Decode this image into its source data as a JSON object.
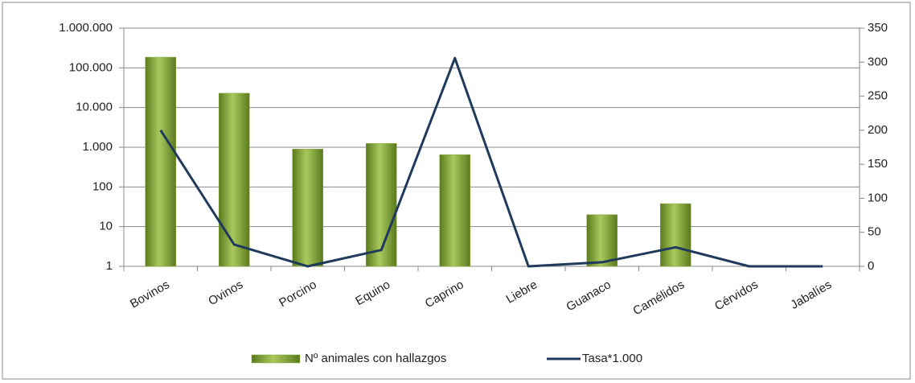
{
  "chart_data": {
    "type": "bar-line",
    "yscale": "log",
    "legend": "bottom",
    "grid": true,
    "categories": [
      "Bovinos",
      "Ovinos",
      "Porcino",
      "Equino",
      "Caprino",
      "Liebre",
      "Guanaco",
      "Camélidos",
      "Cérvidos",
      "Jabalíes"
    ],
    "series": [
      {
        "name": "Nº animales con hallazgos",
        "type": "bar",
        "color": "#8aaa3c",
        "values": [
          186000,
          23000,
          900,
          1250,
          650,
          null,
          20,
          38,
          null,
          null
        ]
      },
      {
        "name": "Tasa*1.000",
        "type": "line",
        "axis": "y2",
        "color": "#1f3a5a",
        "values": [
          200,
          32,
          0,
          24,
          306,
          0,
          6,
          28,
          0,
          0
        ]
      }
    ],
    "ylim": [
      1,
      1000000
    ],
    "yticks": [
      1,
      10,
      100,
      {
        "value": 1000,
        "label": "1.000"
      },
      {
        "value": 10000,
        "label": "10.000"
      },
      {
        "value": 100000,
        "label": "100.000"
      },
      {
        "value": 1000000,
        "label": "1.000.000"
      }
    ],
    "y2lim": [
      0,
      350
    ],
    "y2ticks": [
      0,
      50,
      100,
      150,
      200,
      250,
      300,
      350
    ]
  }
}
